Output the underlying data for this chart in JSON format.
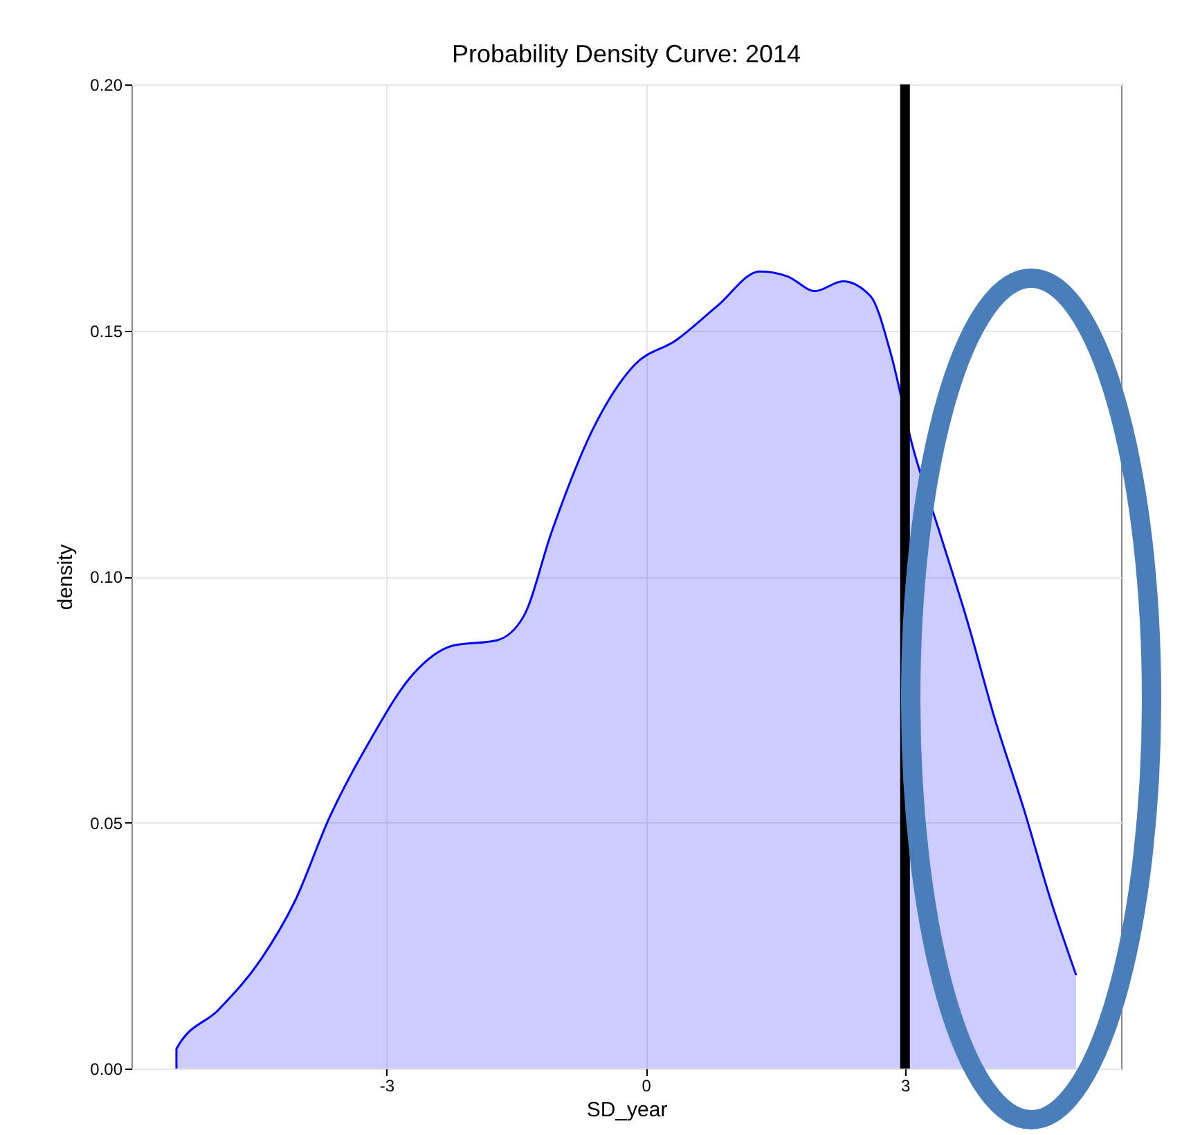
{
  "chart_data": {
    "type": "area",
    "title": "Probability Density Curve: 2014",
    "xlabel": "SD_year",
    "ylabel": "density",
    "x": [
      -5.43,
      -5.43,
      -4.94,
      -4.46,
      -4.06,
      -3.66,
      -3.18,
      -2.7,
      -2.22,
      -1.73,
      -1.41,
      -1.09,
      -0.61,
      -0.13,
      0.35,
      0.83,
      1.32,
      1.64,
      1.96,
      2.28,
      2.6,
      2.84,
      3.08,
      3.4,
      3.72,
      4.04,
      4.37,
      4.69,
      4.98,
      4.98
    ],
    "series": [
      {
        "color": "#0000ff",
        "values": [
          0,
          0.004,
          0.012,
          0.022,
          0.034,
          0.051,
          0.067,
          0.08,
          0.086,
          0.087,
          0.092,
          0.109,
          0.13,
          0.143,
          0.148,
          0.155,
          0.162,
          0.161,
          0.158,
          0.16,
          0.157,
          0.145,
          0.127,
          0.109,
          0.091,
          0.071,
          0.053,
          0.034,
          0.019,
          0
        ]
      }
    ],
    "xlim": [
      -5.95,
      5.5
    ],
    "xticks": [
      -3,
      0,
      3
    ],
    "ylim": [
      0,
      0.2
    ],
    "yticks": [
      {
        "value": 0,
        "label": "0.00"
      },
      {
        "value": 0.05,
        "label": "0.05"
      },
      {
        "value": 0.1,
        "label": "0.10"
      },
      {
        "value": 0.15,
        "label": "0.15"
      },
      {
        "value": 0.2,
        "label": "0.20"
      }
    ],
    "grid": true,
    "ref_lines": [
      {
        "axis": "x",
        "value": 3,
        "color": "#000000"
      }
    ]
  }
}
